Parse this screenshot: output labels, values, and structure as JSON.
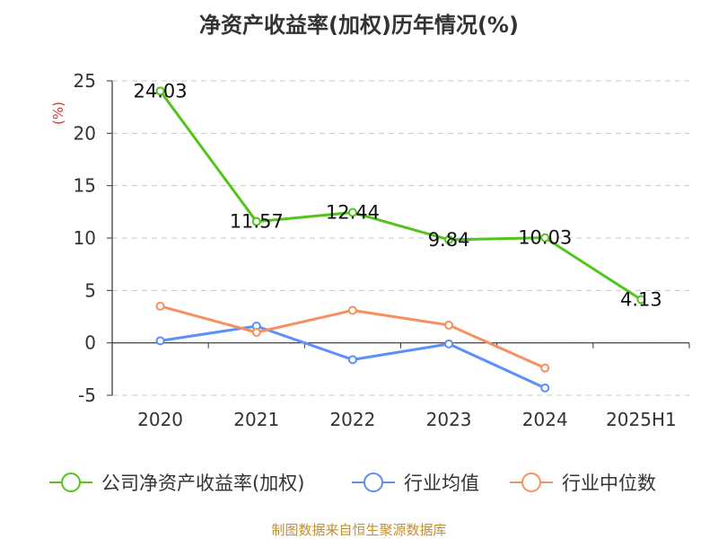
{
  "title": "净资产收益率(加权)历年情况(%)",
  "source_text": "制图数据来自恒生聚源数据库",
  "chart_data": {
    "type": "line",
    "title": "净资产收益率(加权)历年情况(%)",
    "ylabel": "(%)",
    "xlabel": "",
    "ylim": [
      -5,
      25
    ],
    "yticks": [
      25,
      20,
      15,
      10,
      5,
      0,
      -5
    ],
    "grid": true,
    "legend_position": "bottom",
    "categories": [
      "2020",
      "2021",
      "2022",
      "2023",
      "2024",
      "2025H1"
    ],
    "series": [
      {
        "name": "公司净资产收益率(加权)",
        "color": "#52c41a",
        "values": [
          24.03,
          11.57,
          12.44,
          9.84,
          10.03,
          4.13
        ],
        "labels": [
          "24.03",
          "11.57",
          "12.44",
          "9.84",
          "10.03",
          "4.13"
        ]
      },
      {
        "name": "行业均值",
        "color": "#5b8ff9",
        "values": [
          0.2,
          1.6,
          -1.6,
          -0.1,
          -4.3,
          null
        ]
      },
      {
        "name": "行业中位数",
        "color": "#f6905f",
        "values": [
          3.5,
          1.0,
          3.1,
          1.7,
          -2.4,
          null
        ]
      }
    ]
  }
}
